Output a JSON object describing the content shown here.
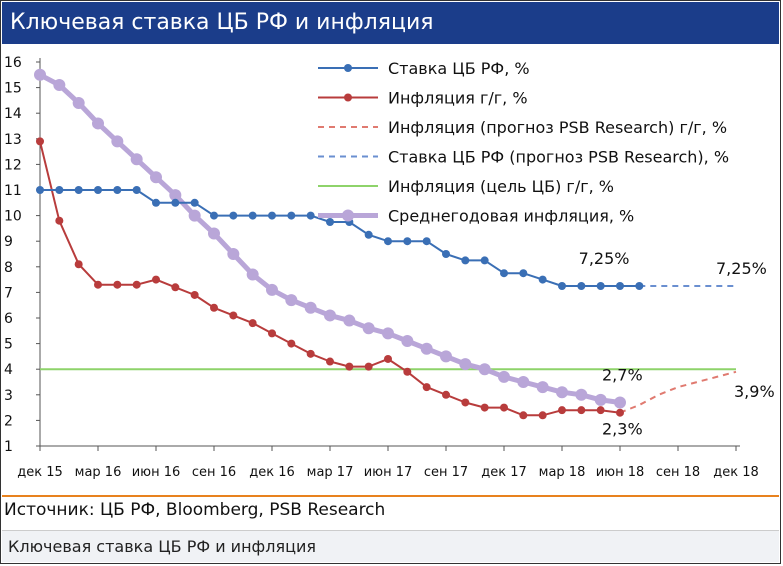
{
  "header": {
    "title": "Ключевая ставка ЦБ РФ и инфляция"
  },
  "footer": {
    "source": "Источник: ЦБ РФ, Bloomberg, PSB Research",
    "caption": "Ключевая ставка ЦБ РФ и инфляция"
  },
  "chart_data": {
    "type": "line",
    "title": "Ключевая ставка ЦБ РФ и инфляция",
    "ylim": [
      1,
      16
    ],
    "yticks": [
      1,
      2,
      3,
      4,
      5,
      6,
      7,
      8,
      9,
      10,
      11,
      12,
      13,
      14,
      15,
      16
    ],
    "x_tick_labels": [
      "дек 15",
      "мар 16",
      "июн 16",
      "сен 16",
      "дек 16",
      "мар 17",
      "июн 17",
      "сен 17",
      "дек 17",
      "мар 18",
      "июн 18",
      "сен 18",
      "дек 18"
    ],
    "x_tick_months": [
      "2015-12",
      "2016-03",
      "2016-06",
      "2016-09",
      "2016-12",
      "2017-03",
      "2017-06",
      "2017-09",
      "2017-12",
      "2018-03",
      "2018-06",
      "2018-09",
      "2018-12"
    ],
    "x_range": [
      "2015-12",
      "2018-12"
    ],
    "legend_position": "top-right",
    "grid": false,
    "series": [
      {
        "name": "Ставка ЦБ РФ, %",
        "color": "#3a6fb5",
        "style": "solid",
        "marker": "circle",
        "x": [
          "2015-12",
          "2016-01",
          "2016-02",
          "2016-03",
          "2016-04",
          "2016-05",
          "2016-06",
          "2016-07",
          "2016-08",
          "2016-09",
          "2016-10",
          "2016-11",
          "2016-12",
          "2017-01",
          "2017-02",
          "2017-03",
          "2017-04",
          "2017-05",
          "2017-06",
          "2017-07",
          "2017-08",
          "2017-09",
          "2017-10",
          "2017-11",
          "2017-12",
          "2018-01",
          "2018-02",
          "2018-03",
          "2018-04",
          "2018-05",
          "2018-06",
          "2018-07"
        ],
        "values": [
          11,
          11,
          11,
          11,
          11,
          11,
          10.5,
          10.5,
          10.5,
          10,
          10,
          10,
          10,
          10,
          10,
          9.75,
          9.75,
          9.25,
          9,
          9,
          9,
          8.5,
          8.25,
          8.25,
          7.75,
          7.75,
          7.5,
          7.25,
          7.25,
          7.25,
          7.25,
          7.25
        ]
      },
      {
        "name": "Инфляция г/г, %",
        "color": "#b83c3c",
        "style": "solid",
        "marker": "circle",
        "x": [
          "2015-12",
          "2016-01",
          "2016-02",
          "2016-03",
          "2016-04",
          "2016-05",
          "2016-06",
          "2016-07",
          "2016-08",
          "2016-09",
          "2016-10",
          "2016-11",
          "2016-12",
          "2017-01",
          "2017-02",
          "2017-03",
          "2017-04",
          "2017-05",
          "2017-06",
          "2017-07",
          "2017-08",
          "2017-09",
          "2017-10",
          "2017-11",
          "2017-12",
          "2018-01",
          "2018-02",
          "2018-03",
          "2018-04",
          "2018-05",
          "2018-06"
        ],
        "values": [
          12.9,
          9.8,
          8.1,
          7.3,
          7.3,
          7.3,
          7.5,
          7.2,
          6.9,
          6.4,
          6.1,
          5.8,
          5.4,
          5.0,
          4.6,
          4.3,
          4.1,
          4.1,
          4.4,
          3.9,
          3.3,
          3.0,
          2.7,
          2.5,
          2.5,
          2.2,
          2.2,
          2.4,
          2.4,
          2.4,
          2.3
        ]
      },
      {
        "name": "Инфляция (прогноз PSB Research) г/г, %",
        "color": "#e07a70",
        "style": "dashed",
        "marker": "none",
        "x": [
          "2018-06",
          "2018-07",
          "2018-08",
          "2018-09",
          "2018-10",
          "2018-11",
          "2018-12"
        ],
        "values": [
          2.3,
          2.6,
          3.0,
          3.3,
          3.5,
          3.7,
          3.9
        ]
      },
      {
        "name": "Ставка ЦБ РФ (прогноз  PSB Research), %",
        "color": "#6a8fd0",
        "style": "dashed",
        "marker": "none",
        "x": [
          "2018-07",
          "2018-12"
        ],
        "values": [
          7.25,
          7.25
        ]
      },
      {
        "name": "Инфляция (цель ЦБ) г/г, %",
        "color": "#8ed36a",
        "style": "solid",
        "marker": "none",
        "x": [
          "2015-12",
          "2018-12"
        ],
        "values": [
          4,
          4
        ]
      },
      {
        "name": "Среднегодовая инфляция, %",
        "color": "#b9a6d8",
        "style": "solid",
        "marker": "circle",
        "x": [
          "2015-12",
          "2016-01",
          "2016-02",
          "2016-03",
          "2016-04",
          "2016-05",
          "2016-06",
          "2016-07",
          "2016-08",
          "2016-09",
          "2016-10",
          "2016-11",
          "2016-12",
          "2017-01",
          "2017-02",
          "2017-03",
          "2017-04",
          "2017-05",
          "2017-06",
          "2017-07",
          "2017-08",
          "2017-09",
          "2017-10",
          "2017-11",
          "2017-12",
          "2018-01",
          "2018-02",
          "2018-03",
          "2018-04",
          "2018-05",
          "2018-06"
        ],
        "values": [
          15.5,
          15.1,
          14.4,
          13.6,
          12.9,
          12.2,
          11.5,
          10.8,
          10.0,
          9.3,
          8.5,
          7.7,
          7.1,
          6.7,
          6.4,
          6.1,
          5.9,
          5.6,
          5.4,
          5.1,
          4.8,
          4.5,
          4.2,
          4.0,
          3.7,
          3.5,
          3.3,
          3.1,
          3.0,
          2.8,
          2.7
        ]
      }
    ],
    "annotations": [
      {
        "text": "7,25%",
        "x": "2018-05",
        "y": 7.25
      },
      {
        "text": "7,25%",
        "x": "2018-12",
        "y": 7.25
      },
      {
        "text": "2,7%",
        "x": "2018-06",
        "y": 2.7
      },
      {
        "text": "2,3%",
        "x": "2018-06",
        "y": 2.3
      },
      {
        "text": "3,9%",
        "x": "2018-12",
        "y": 3.9
      }
    ]
  }
}
